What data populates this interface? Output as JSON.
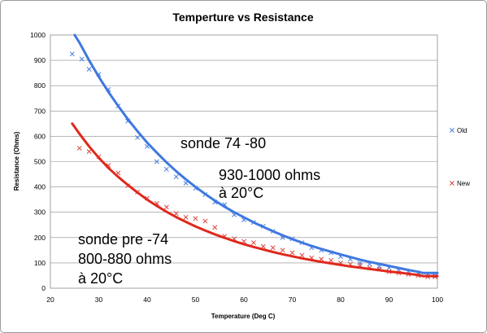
{
  "chart_data": {
    "type": "scatter",
    "title": "Temperture vs Resistance",
    "xlabel": "Temperature (Deg C)",
    "ylabel": "Resistance (Ohms)",
    "xlim": [
      20,
      100
    ],
    "ylim": [
      0,
      1000
    ],
    "xticks": [
      "20",
      "30",
      "40",
      "50",
      "60",
      "70",
      "80",
      "90",
      "100"
    ],
    "yticks": [
      "0",
      "100",
      "200",
      "300",
      "400",
      "500",
      "600",
      "700",
      "800",
      "900",
      "1000"
    ],
    "grid": "horizontal",
    "legend_position": "right",
    "series": [
      {
        "name": "Old",
        "color": "#4a7ede",
        "trend_color": "#3f78e0",
        "points": [
          [
            24.5,
            925
          ],
          [
            26.5,
            905
          ],
          [
            28,
            865
          ],
          [
            30,
            845
          ],
          [
            32,
            785
          ],
          [
            34,
            720
          ],
          [
            36,
            660
          ],
          [
            38,
            595
          ],
          [
            40,
            560
          ],
          [
            42,
            500
          ],
          [
            44,
            470
          ],
          [
            46,
            440
          ],
          [
            48,
            415
          ],
          [
            50,
            395
          ],
          [
            52,
            370
          ],
          [
            54,
            340
          ],
          [
            56,
            330
          ],
          [
            58,
            290
          ],
          [
            60,
            270
          ],
          [
            62,
            260
          ],
          [
            64,
            245
          ],
          [
            66,
            225
          ],
          [
            68,
            200
          ],
          [
            70,
            195
          ],
          [
            72,
            180
          ],
          [
            74,
            160
          ],
          [
            76,
            150
          ],
          [
            78,
            140
          ],
          [
            80,
            125
          ],
          [
            82,
            115
          ],
          [
            84,
            100
          ],
          [
            86,
            95
          ],
          [
            88,
            85
          ],
          [
            90,
            80
          ],
          [
            92,
            70
          ],
          [
            94,
            65
          ],
          [
            96,
            60
          ],
          [
            98,
            55
          ],
          [
            99.5,
            50
          ]
        ],
        "trend": [
          [
            25,
            1000
          ],
          [
            26,
            970
          ],
          [
            28,
            900
          ],
          [
            30,
            835
          ],
          [
            32,
            775
          ],
          [
            34,
            720
          ],
          [
            36,
            668
          ],
          [
            38,
            620
          ],
          [
            40,
            575
          ],
          [
            42,
            535
          ],
          [
            44,
            497
          ],
          [
            46,
            462
          ],
          [
            48,
            430
          ],
          [
            50,
            400
          ],
          [
            52,
            372
          ],
          [
            54,
            346
          ],
          [
            56,
            322
          ],
          [
            58,
            300
          ],
          [
            60,
            280
          ],
          [
            62,
            260
          ],
          [
            64,
            242
          ],
          [
            66,
            225
          ],
          [
            68,
            209
          ],
          [
            70,
            194
          ],
          [
            72,
            180
          ],
          [
            74,
            167
          ],
          [
            76,
            155
          ],
          [
            78,
            144
          ],
          [
            80,
            133
          ],
          [
            82,
            123
          ],
          [
            84,
            113
          ],
          [
            86,
            104
          ],
          [
            88,
            96
          ],
          [
            90,
            88
          ],
          [
            92,
            80
          ],
          [
            94,
            72
          ],
          [
            96,
            65
          ],
          [
            97,
            60
          ],
          [
            100,
            60
          ]
        ]
      },
      {
        "name": "New",
        "color": "#d9473f",
        "trend_color": "#e0281c",
        "points": [
          [
            26,
            553
          ],
          [
            28,
            540
          ],
          [
            30,
            520
          ],
          [
            32,
            485
          ],
          [
            34,
            455
          ],
          [
            36,
            405
          ],
          [
            38,
            380
          ],
          [
            40,
            355
          ],
          [
            42,
            335
          ],
          [
            44,
            320
          ],
          [
            46,
            295
          ],
          [
            48,
            280
          ],
          [
            50,
            275
          ],
          [
            52,
            265
          ],
          [
            54,
            240
          ],
          [
            56,
            205
          ],
          [
            58,
            195
          ],
          [
            60,
            185
          ],
          [
            62,
            180
          ],
          [
            64,
            165
          ],
          [
            66,
            160
          ],
          [
            68,
            150
          ],
          [
            70,
            140
          ],
          [
            72,
            130
          ],
          [
            74,
            120
          ],
          [
            76,
            115
          ],
          [
            78,
            110
          ],
          [
            80,
            100
          ],
          [
            82,
            95
          ],
          [
            84,
            90
          ],
          [
            86,
            80
          ],
          [
            88,
            75
          ],
          [
            90,
            65
          ],
          [
            92,
            60
          ],
          [
            94,
            55
          ],
          [
            96,
            50
          ],
          [
            98,
            45
          ],
          [
            99.5,
            45
          ]
        ],
        "trend": [
          [
            24.5,
            650
          ],
          [
            26,
            610
          ],
          [
            28,
            560
          ],
          [
            30,
            515
          ],
          [
            32,
            475
          ],
          [
            34,
            440
          ],
          [
            36,
            408
          ],
          [
            38,
            378
          ],
          [
            40,
            350
          ],
          [
            42,
            325
          ],
          [
            44,
            302
          ],
          [
            46,
            281
          ],
          [
            48,
            262
          ],
          [
            50,
            244
          ],
          [
            52,
            228
          ],
          [
            54,
            213
          ],
          [
            56,
            199
          ],
          [
            58,
            186
          ],
          [
            60,
            174
          ],
          [
            62,
            163
          ],
          [
            64,
            153
          ],
          [
            66,
            143
          ],
          [
            68,
            134
          ],
          [
            70,
            126
          ],
          [
            72,
            118
          ],
          [
            74,
            111
          ],
          [
            76,
            104
          ],
          [
            78,
            98
          ],
          [
            80,
            92
          ],
          [
            82,
            86
          ],
          [
            84,
            81
          ],
          [
            86,
            76
          ],
          [
            88,
            71
          ],
          [
            90,
            66
          ],
          [
            92,
            62
          ],
          [
            94,
            57
          ],
          [
            96,
            52
          ],
          [
            97,
            48
          ],
          [
            100,
            48
          ]
        ]
      }
    ],
    "annotations": [
      {
        "lines": [
          "sonde 74 -80"
        ]
      },
      {
        "lines": [
          "930-1000 ohms",
          "à 20°C"
        ]
      },
      {
        "lines": [
          "sonde pre -74",
          "800-880 ohms",
          "à 20°C"
        ]
      }
    ]
  }
}
